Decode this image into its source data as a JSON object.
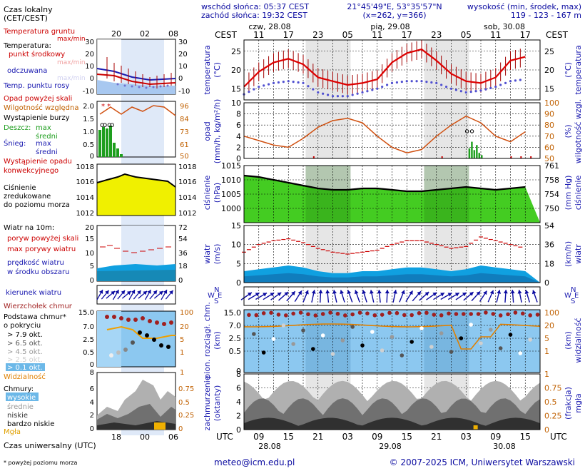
{
  "header": {
    "sunrise": "wschód słońca: 05:37 CEST",
    "sunset": "zachód słońca: 19:32 CEST",
    "coords": "21°45'49\"E, 53°35'57\"N",
    "grid": "(x=262, y=366)",
    "elev_label": "wysokość (min, środek, max)",
    "elev_values": "119 - 123 - 167 m"
  },
  "legend": {
    "local_time": "Czas lokalny",
    "local_time2": "(CET/CEST)",
    "ground_temp": "Temperatura gruntu",
    "ground_temp_maxmin": "max/min",
    "temp": "Temperatura:",
    "temp_mid": "punkt środkowy",
    "temp_maxmin": "max/min",
    "perceived": "odczuwana",
    "perceived_maxmin": "max/min",
    "dewpoint": "Temp. punktu rosy",
    "precip_over": "Opad powyżej skali",
    "humidity": "Wilgotność względna",
    "storm": "Wystąpienie burzy",
    "rain": "Deszcz:",
    "rain_max": "max",
    "rain_avg": "średni",
    "snow": "Śnieg:",
    "snow_max": "max",
    "snow_avg": "średni",
    "conv1": "Wystąpienie opadu",
    "conv2": "konwekcyjnego",
    "pressure1": "Ciśnienie",
    "pressure2": "zredukowane",
    "pressure3": "do poziomu morza",
    "wind_at": "Wiatr na 10m:",
    "gust_over": "poryw powyżej skali",
    "gust_max": "max porywy wiatru",
    "wind_speed1": "prędkość wiatru",
    "wind_speed2": "w środku obszaru",
    "wind_dir": "kierunek wiatru",
    "cloud_top": "Wierzchołek chmur",
    "cloud_base1": "Podstawa chmur*",
    "cloud_base2": "o pokryciu",
    "okt79": "> 7.9 okt.",
    "okt65": "> 6.5 okt.",
    "okt45": "> 4.5 okt.",
    "okt25": "> 2.5 okt.",
    "okt01": "> 0.1 okt.",
    "visibility": "Widzialność",
    "clouds": "Chmury:",
    "high": "wysokie",
    "medium": "średnie",
    "low": "niskie",
    "very_low": "bardzo niskie",
    "fog": "Mgła",
    "utc_label": "Czas uniwersalny (UTC)",
    "footnote": "* powyżej poziomu morza"
  },
  "legend_axes": {
    "local_ticks": [
      "20",
      "02",
      "08"
    ],
    "utc_ticks": [
      "18",
      "00",
      "06"
    ],
    "temp_left": [
      "30",
      "20",
      "10",
      "0",
      "-10"
    ],
    "temp_right": [
      "30",
      "20",
      "10",
      "0",
      "-10"
    ],
    "precip_left": [
      "2.0",
      "1.5",
      "1.0",
      "0.5",
      "0"
    ],
    "precip_right": [
      "96",
      "84",
      "73",
      "61",
      "50"
    ],
    "press_left": [
      "1018",
      "1016",
      "1014",
      "1012"
    ],
    "press_right": [
      "1018",
      "1016",
      "1014",
      "1012"
    ],
    "wind_left": [
      "20",
      "15",
      "10",
      "5",
      "0"
    ],
    "wind_right": [
      "72",
      "54",
      "36",
      "18",
      "0"
    ],
    "cbase_left": [
      "15.0",
      "7.0",
      "2.5",
      "0.5",
      "0"
    ],
    "cbase_right": [
      "100",
      "20",
      "5",
      "1",
      ""
    ],
    "vis_bottom_left": "8",
    "vis_bottom_right": "1",
    "cloud_left": [
      "8",
      "6",
      "4",
      "2",
      "0"
    ],
    "cloud_right": [
      "1",
      "0.75",
      "0.5",
      "0.25",
      "0"
    ]
  },
  "top_axis": {
    "zone": "CEST",
    "days": [
      "czw, 28.08",
      "pią, 29.08",
      "sob, 30.08"
    ],
    "hours": [
      "11",
      "17",
      "23",
      "05",
      "11",
      "17",
      "23",
      "05",
      "11",
      "17"
    ]
  },
  "bottom_axis": {
    "zone": "UTC",
    "hours": [
      "09",
      "15",
      "21",
      "03",
      "09",
      "15",
      "21",
      "03",
      "09",
      "15"
    ],
    "dates": [
      "28.08",
      "29.08",
      "30.08"
    ]
  },
  "panel_labels": {
    "temp_left": "temperatura",
    "temp_left_unit": "(°C)",
    "temp_right_unit": "(°C)",
    "temp_right": "temperatura",
    "precip_left": "opad",
    "precip_left_unit": "(mm/h, kg/m²/h)",
    "precip_right_unit": "(%)",
    "precip_right": "wilgotność wzgl.",
    "press_left": "ciśnienie",
    "press_left_unit": "(hPa)",
    "press_right_unit": "(mm Hg)",
    "press_right": "ciśnienie",
    "wind_left": "wiatr",
    "wind_left_unit": "(m/s)",
    "wind_right_unit": "(km/h)",
    "wind_right": "wiatr",
    "compass_n": "N",
    "compass_w": "W",
    "compass_e": "E",
    "compass_s": "S",
    "cbase_left": "pion. rozciągł. chm.",
    "cbase_left_unit": "(km)",
    "cbase_right_unit": "(km)",
    "cbase_right": "widzialność",
    "cloud_left": "zachmurzenie",
    "cloud_left_unit": "(oktanty)",
    "cloud_right_unit": "(frakcja)",
    "cloud_right": "mgła"
  },
  "main_axes": {
    "temp_left": [
      "25",
      "20",
      "15"
    ],
    "temp_right": [
      "25",
      "20",
      "15"
    ],
    "precip_left": [
      "10",
      "8",
      "6",
      "4",
      "2",
      "0"
    ],
    "precip_right": [
      "100",
      "90",
      "80",
      "70",
      "60",
      "50"
    ],
    "press_left": [
      "1015",
      "1010",
      "1005",
      "1000"
    ],
    "press_right": [
      "761",
      "758",
      "754",
      "750"
    ],
    "wind_left": [
      "15",
      "10",
      "5",
      "0"
    ],
    "wind_right": [
      "54",
      "36",
      "18",
      "0"
    ],
    "cbase_left": [
      "15.0",
      "7.0",
      "2.5",
      "0.5",
      "0"
    ],
    "cbase_right": [
      "100",
      "20",
      "5",
      "1"
    ],
    "cloud_left": [
      "8",
      "6",
      "4",
      "2",
      "0"
    ],
    "cloud_right": [
      "1",
      "0.75",
      "0.5",
      "0.25",
      "0"
    ]
  },
  "footer": {
    "email": "meteo@icm.edu.pl",
    "copyright": "© 2007-2025 ICM, Uniwersytet Warszawski"
  },
  "chart_data": {
    "type": "line",
    "title": "",
    "x_hours_utc": [
      6,
      9,
      12,
      15,
      18,
      21,
      24,
      27,
      30,
      33,
      36,
      39,
      42,
      45,
      48,
      51,
      54,
      57,
      60,
      63
    ],
    "temperature": [
      15.5,
      19.5,
      22.0,
      23.0,
      21.5,
      18.0,
      17.0,
      16.0,
      16.5,
      17.5,
      22.0,
      24.5,
      25.5,
      22.5,
      19.0,
      17.0,
      16.5,
      18.0,
      22.5,
      23.5
    ],
    "dewpoint": [
      13.5,
      15.5,
      16.5,
      17.0,
      16.5,
      14.0,
      13.0,
      13.0,
      14.0,
      15.0,
      16.5,
      17.0,
      17.0,
      16.5,
      15.0,
      14.0,
      14.5,
      15.5,
      17.0,
      17.5
    ],
    "humidity": [
      70,
      66,
      62,
      60,
      68,
      78,
      84,
      86,
      82,
      70,
      60,
      55,
      58,
      70,
      80,
      88,
      82,
      70,
      65,
      74
    ],
    "pressure": [
      1011.5,
      1011.0,
      1010.0,
      1009.0,
      1008.0,
      1007.0,
      1006.5,
      1006.5,
      1007.0,
      1007.0,
      1006.5,
      1006.0,
      1006.0,
      1006.5,
      1007.0,
      1007.5,
      1007.0,
      1006.5,
      1007.0,
      1007.5
    ],
    "wind_speed": [
      3.0,
      3.5,
      4.0,
      4.5,
      4.0,
      3.0,
      2.5,
      2.5,
      3.0,
      3.0,
      3.5,
      4.0,
      4.0,
      3.5,
      3.0,
      3.5,
      4.5,
      4.0,
      3.5,
      3.0
    ],
    "wind_gust": [
      8.0,
      10.0,
      11.0,
      11.5,
      10.5,
      9.0,
      8.0,
      7.5,
      8.0,
      8.5,
      10.0,
      11.0,
      11.0,
      10.0,
      9.0,
      9.5,
      12.0,
      11.0,
      10.0,
      9.0
    ],
    "precip_max": [
      0,
      0,
      0,
      0,
      0,
      0,
      0,
      0,
      0,
      0,
      0,
      0,
      0,
      0,
      0,
      0,
      1.5,
      0,
      0,
      0
    ],
    "temp_ylim": [
      12,
      28
    ],
    "precip_ylim": [
      0,
      10
    ],
    "humidity_ylim": [
      50,
      100
    ],
    "pressure_ylim": [
      995,
      1015
    ],
    "wind_ylim": [
      0,
      15
    ]
  }
}
